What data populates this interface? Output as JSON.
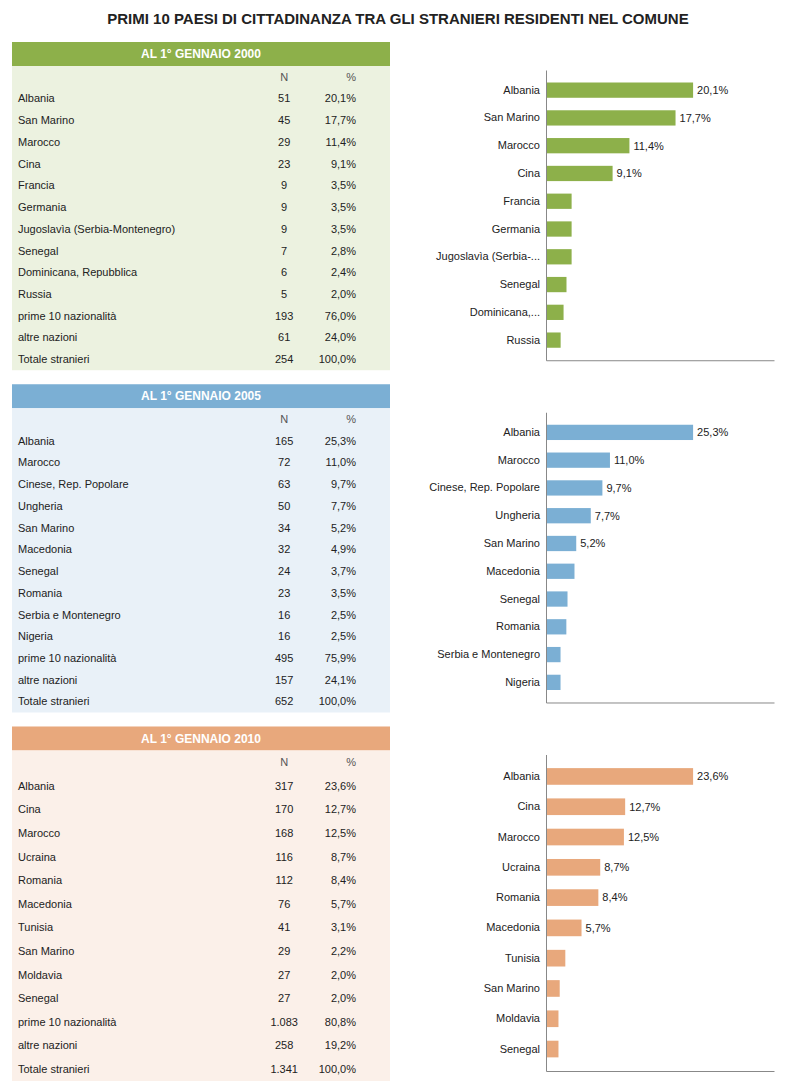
{
  "title": "PRIMI 10 PAESI DI CITTADINANZA TRA GLI STRANIERI RESIDENTI NEL COMUNE",
  "chart_data": [
    {
      "type": "bar",
      "orientation": "horizontal",
      "title": "AL 1° GENNAIO 2000",
      "color": "#8DB04A",
      "categories": [
        "Albania",
        "San Marino",
        "Marocco",
        "Cina",
        "Francia",
        "Germania",
        "Jugoslavìa (Serbia-...",
        "Senegal",
        "Dominicana,...",
        "Russia"
      ],
      "values": [
        20.1,
        17.7,
        11.4,
        9.1,
        3.5,
        3.5,
        3.5,
        2.8,
        2.4,
        2.0
      ],
      "value_labels": [
        "20,1%",
        "17,7%",
        "11,4%",
        "9,1%",
        null,
        null,
        null,
        null,
        null,
        null
      ],
      "data_labels": true,
      "xlim": [
        0,
        31.155
      ],
      "tick_labels": "y",
      "grid": false,
      "table": {
        "columns": [
          "N",
          "%"
        ],
        "rows": [
          {
            "label": "Albania",
            "N": 51,
            "pct": {
              "value": 20.1,
              "label": "20,1%"
            }
          },
          {
            "label": "San Marino",
            "N": 45,
            "pct": {
              "value": 17.7,
              "label": "17,7%"
            }
          },
          {
            "label": "Marocco",
            "N": 29,
            "pct": {
              "value": 11.4,
              "label": "11,4%"
            }
          },
          {
            "label": "Cina",
            "N": 23,
            "pct": {
              "value": 9.1,
              "label": "9,1%"
            }
          },
          {
            "label": "Francia",
            "N": 9,
            "pct": {
              "value": 3.5,
              "label": "3,5%"
            }
          },
          {
            "label": "Germania",
            "N": 9,
            "pct": {
              "value": 3.5,
              "label": "3,5%"
            }
          },
          {
            "label": "Jugoslavìa (Serbia-Montenegro)",
            "N": 9,
            "pct": {
              "value": 3.5,
              "label": "3,5%"
            }
          },
          {
            "label": "Senegal",
            "N": 7,
            "pct": {
              "value": 2.8,
              "label": "2,8%"
            }
          },
          {
            "label": "Dominicana, Repubblica",
            "N": 6,
            "pct": {
              "value": 2.4,
              "label": "2,4%"
            }
          },
          {
            "label": "Russia",
            "N": 5,
            "pct": {
              "value": 2.0,
              "label": "2,0%"
            }
          },
          {
            "label": "prime 10 nazionalità",
            "N": 193,
            "pct": {
              "value": 76.0,
              "label": "76,0%"
            }
          },
          {
            "label": "altre nazioni",
            "N": 61,
            "pct": {
              "value": 24.0,
              "label": "24,0%"
            }
          },
          {
            "label": "Totale stranieri",
            "N": 254,
            "pct": {
              "value": 100.0,
              "label": "100,0%"
            }
          }
        ]
      }
    },
    {
      "type": "bar",
      "orientation": "horizontal",
      "title": "AL 1° GENNAIO 2005",
      "color": "#7BAFD4",
      "categories": [
        "Albania",
        "Marocco",
        "Cinese, Rep. Popolare",
        "Ungheria",
        "San Marino",
        "Macedonia",
        "Senegal",
        "Romania",
        "Serbia e Montenegro",
        "Nigeria"
      ],
      "values": [
        25.3,
        11.0,
        9.7,
        7.7,
        5.2,
        4.9,
        3.7,
        3.5,
        2.5,
        2.5
      ],
      "value_labels": [
        "25,3%",
        "11,0%",
        "9,7%",
        "7,7%",
        "5,2%",
        null,
        null,
        null,
        null,
        null
      ],
      "data_labels": true,
      "xlim": [
        0,
        39.215
      ],
      "tick_labels": "y",
      "grid": false,
      "table": {
        "columns": [
          "N",
          "%"
        ],
        "rows": [
          {
            "label": "Albania",
            "N": 165,
            "pct": {
              "value": 25.3,
              "label": "25,3%"
            }
          },
          {
            "label": "Marocco",
            "N": 72,
            "pct": {
              "value": 11.0,
              "label": "11,0%"
            }
          },
          {
            "label": "Cinese, Rep. Popolare",
            "N": 63,
            "pct": {
              "value": 9.7,
              "label": "9,7%"
            }
          },
          {
            "label": "Ungheria",
            "N": 50,
            "pct": {
              "value": 7.7,
              "label": "7,7%"
            }
          },
          {
            "label": "San Marino",
            "N": 34,
            "pct": {
              "value": 5.2,
              "label": "5,2%"
            }
          },
          {
            "label": "Macedonia",
            "N": 32,
            "pct": {
              "value": 4.9,
              "label": "4,9%"
            }
          },
          {
            "label": "Senegal",
            "N": 24,
            "pct": {
              "value": 3.7,
              "label": "3,7%"
            }
          },
          {
            "label": "Romania",
            "N": 23,
            "pct": {
              "value": 3.5,
              "label": "3,5%"
            }
          },
          {
            "label": "Serbia e Montenegro",
            "N": 16,
            "pct": {
              "value": 2.5,
              "label": "2,5%"
            }
          },
          {
            "label": "Nigeria",
            "N": 16,
            "pct": {
              "value": 2.5,
              "label": "2,5%"
            }
          },
          {
            "label": "prime 10 nazionalità",
            "N": 495,
            "pct": {
              "value": 75.9,
              "label": "75,9%"
            }
          },
          {
            "label": "altre nazioni",
            "N": 157,
            "pct": {
              "value": 24.1,
              "label": "24,1%"
            }
          },
          {
            "label": "Totale stranieri",
            "N": 652,
            "pct": {
              "value": 100.0,
              "label": "100,0%"
            }
          }
        ]
      }
    },
    {
      "type": "bar",
      "orientation": "horizontal",
      "title": "AL 1° GENNAIO 2010",
      "color": "#E8A87C",
      "categories": [
        "Albania",
        "Cina",
        "Marocco",
        "Ucraina",
        "Romania",
        "Macedonia",
        "Tunisia",
        "San Marino",
        "Moldavia",
        "Senegal"
      ],
      "values": [
        23.6,
        12.7,
        12.5,
        8.7,
        8.4,
        5.7,
        3.1,
        2.2,
        2.0,
        2.0
      ],
      "value_labels": [
        "23,6%",
        "12,7%",
        "12,5%",
        "8,7%",
        "8,4%",
        "5,7%",
        null,
        null,
        null,
        null
      ],
      "data_labels": true,
      "xlim": [
        0,
        36.58
      ],
      "tick_labels": "y",
      "grid": false,
      "table": {
        "columns": [
          "N",
          "%"
        ],
        "rows": [
          {
            "label": "Albania",
            "N": 317,
            "pct": {
              "value": 23.6,
              "label": "23,6%"
            }
          },
          {
            "label": "Cina",
            "N": 170,
            "pct": {
              "value": 12.7,
              "label": "12,7%"
            }
          },
          {
            "label": "Marocco",
            "N": 168,
            "pct": {
              "value": 12.5,
              "label": "12,5%"
            }
          },
          {
            "label": "Ucraina",
            "N": 116,
            "pct": {
              "value": 8.7,
              "label": "8,7%"
            }
          },
          {
            "label": "Romania",
            "N": 112,
            "pct": {
              "value": 8.4,
              "label": "8,4%"
            }
          },
          {
            "label": "Macedonia",
            "N": 76,
            "pct": {
              "value": 5.7,
              "label": "5,7%"
            }
          },
          {
            "label": "Tunisia",
            "N": 41,
            "pct": {
              "value": 3.1,
              "label": "3,1%"
            }
          },
          {
            "label": "San Marino",
            "N": 29,
            "pct": {
              "value": 2.2,
              "label": "2,2%"
            }
          },
          {
            "label": "Moldavia",
            "N": 27,
            "pct": {
              "value": 2.0,
              "label": "2,0%"
            }
          },
          {
            "label": "Senegal",
            "N": 27,
            "pct": {
              "value": 2.0,
              "label": "2,0%"
            }
          },
          {
            "label": "prime 10 nazionalità",
            "N": {
              "value": 1083,
              "label": "1.083"
            },
            "pct": {
              "value": 80.8,
              "label": "80,8%"
            }
          },
          {
            "label": "altre nazioni",
            "N": 258,
            "pct": {
              "value": 19.2,
              "label": "19,2%"
            }
          },
          {
            "label": "Totale stranieri",
            "N": {
              "value": 1341,
              "label": "1.341"
            },
            "pct": {
              "value": 100.0,
              "label": "100,0%"
            }
          }
        ]
      }
    }
  ]
}
